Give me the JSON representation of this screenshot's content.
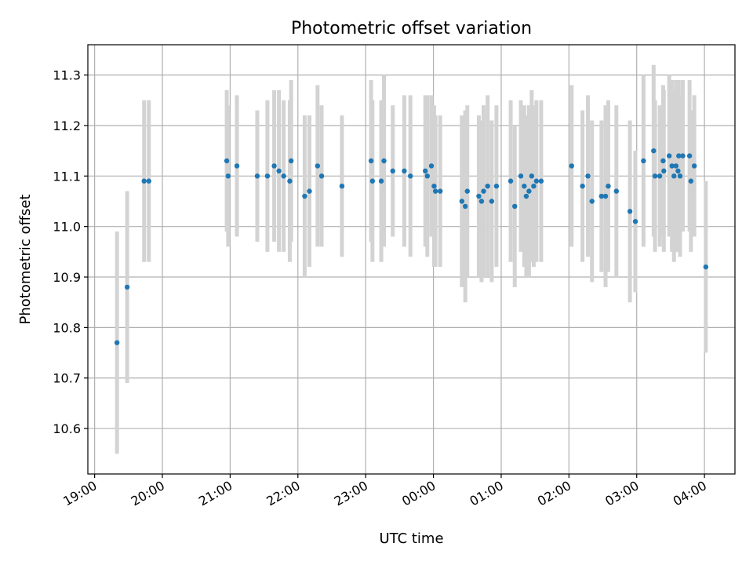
{
  "chart_data": {
    "type": "scatter",
    "title": "Photometric offset variation",
    "xlabel": "UTC time",
    "ylabel": "Photometric offset",
    "x_ticks": [
      "19:00",
      "20:00",
      "21:00",
      "22:00",
      "23:00",
      "00:00",
      "01:00",
      "02:00",
      "03:00",
      "04:00"
    ],
    "x_unit": "hours since 19:00 UTC",
    "y_ticks": [
      "10.6",
      "10.7",
      "10.8",
      "10.9",
      "11.0",
      "11.1",
      "11.2",
      "11.3"
    ],
    "xlim": [
      -0.1,
      9.45
    ],
    "ylim": [
      10.51,
      11.36
    ],
    "grid": true,
    "colors": {
      "points": "#1f77b4",
      "error_bars": "#d3d3d3",
      "grid": "#b0b0b0"
    },
    "series": [
      {
        "x": [
          0.33,
          0.48,
          0.73,
          0.8,
          1.95,
          1.97,
          2.1,
          2.4,
          2.55,
          2.65,
          2.72,
          2.79,
          2.88,
          2.9,
          3.1,
          3.17,
          3.29,
          3.35,
          3.65,
          4.08,
          4.1,
          4.23,
          4.27,
          4.4,
          4.57,
          4.66,
          4.88,
          4.91,
          4.97,
          5.01,
          5.03,
          5.1,
          5.42,
          5.47,
          5.5,
          5.67,
          5.71,
          5.74,
          5.8,
          5.86,
          5.93,
          6.14,
          6.2,
          6.29,
          6.34,
          6.37,
          6.41,
          6.45,
          6.48,
          6.52,
          6.59,
          7.04,
          7.2,
          7.28,
          7.34,
          7.48,
          7.54,
          7.58,
          7.7,
          7.9,
          7.98,
          8.1,
          8.25,
          8.27,
          8.34,
          8.39,
          8.4,
          8.48,
          8.52,
          8.55,
          8.58,
          8.61,
          8.62,
          8.64,
          8.68,
          8.78,
          8.8,
          8.85,
          9.02
        ],
        "y": [
          10.77,
          10.88,
          11.09,
          11.09,
          11.13,
          11.1,
          11.12,
          11.1,
          11.1,
          11.12,
          11.11,
          11.1,
          11.09,
          11.13,
          11.06,
          11.07,
          11.12,
          11.1,
          11.08,
          11.13,
          11.09,
          11.09,
          11.13,
          11.11,
          11.11,
          11.1,
          11.11,
          11.1,
          11.12,
          11.08,
          11.07,
          11.07,
          11.05,
          11.04,
          11.07,
          11.06,
          11.05,
          11.07,
          11.08,
          11.05,
          11.08,
          11.09,
          11.04,
          11.1,
          11.08,
          11.06,
          11.07,
          11.1,
          11.08,
          11.09,
          11.09,
          11.12,
          11.08,
          11.1,
          11.05,
          11.06,
          11.06,
          11.08,
          11.07,
          11.03,
          11.01,
          11.13,
          11.15,
          11.1,
          11.1,
          11.13,
          11.11,
          11.14,
          11.12,
          11.1,
          11.12,
          11.11,
          11.14,
          11.1,
          11.14,
          11.14,
          11.09,
          11.12,
          10.92
        ],
        "yerr": [
          0.22,
          0.19,
          0.16,
          0.16,
          0.14,
          0.14,
          0.14,
          0.13,
          0.15,
          0.15,
          0.16,
          0.15,
          0.16,
          0.16,
          0.16,
          0.15,
          0.16,
          0.14,
          0.14,
          0.16,
          0.16,
          0.16,
          0.17,
          0.13,
          0.15,
          0.16,
          0.15,
          0.16,
          0.14,
          0.16,
          0.15,
          0.15,
          0.17,
          0.19,
          0.17,
          0.16,
          0.16,
          0.17,
          0.18,
          0.16,
          0.16,
          0.16,
          0.16,
          0.15,
          0.16,
          0.16,
          0.17,
          0.17,
          0.16,
          0.16,
          0.16,
          0.16,
          0.15,
          0.16,
          0.16,
          0.15,
          0.18,
          0.17,
          0.17,
          0.18,
          0.14,
          0.17,
          0.17,
          0.15,
          0.14,
          0.15,
          0.16,
          0.16,
          0.17,
          0.17,
          0.17,
          0.16,
          0.15,
          0.16,
          0.15,
          0.15,
          0.14,
          0.14,
          0.17
        ]
      }
    ]
  }
}
